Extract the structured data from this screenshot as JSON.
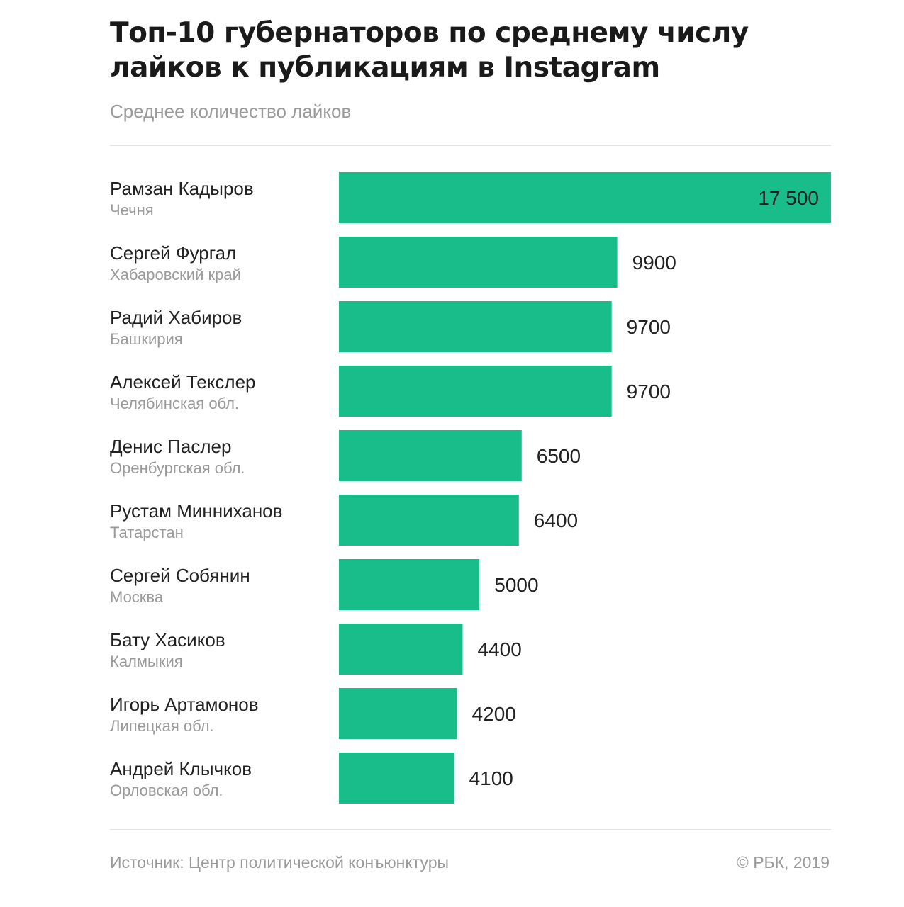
{
  "header": {
    "title": "Топ-10 губернаторов по среднему числу лайков к публикациям в Instagram",
    "subtitle": "Среднее количество лайков"
  },
  "footer": {
    "source": "Источник: Центр политической конъюнктуры",
    "copyright": "© РБК, 2019"
  },
  "colors": {
    "bar": "#18bd8a",
    "name_text": "#222222",
    "region_text": "#9a9a9a",
    "value_text": "#222222"
  },
  "chart_data": {
    "type": "bar",
    "orientation": "horizontal",
    "title": "Топ-10 губернаторов по среднему числу лайков к публикациям в Instagram",
    "subtitle": "Среднее количество лайков",
    "categories": [
      {
        "name": "Рамзан Кадыров",
        "region": "Чечня"
      },
      {
        "name": "Сергей Фургал",
        "region": "Хабаровский край"
      },
      {
        "name": "Радий Хабиров",
        "region": "Башкирия"
      },
      {
        "name": "Алексей Текслер",
        "region": "Челябинская обл."
      },
      {
        "name": "Денис Паслер",
        "region": "Оренбургская обл."
      },
      {
        "name": "Рустам Минниханов",
        "region": "Татарстан"
      },
      {
        "name": "Сергей Собянин",
        "region": "Москва"
      },
      {
        "name": "Бату Хасиков",
        "region": "Калмыкия"
      },
      {
        "name": "Игорь Артамонов",
        "region": "Липецкая обл."
      },
      {
        "name": "Андрей Клычков",
        "region": "Орловская обл."
      }
    ],
    "values": [
      17500,
      9900,
      9700,
      9700,
      6500,
      6400,
      5000,
      4400,
      4200,
      4100
    ],
    "value_labels": [
      "17 500",
      "9900",
      "9700",
      "9700",
      "6500",
      "6400",
      "5000",
      "4400",
      "4200",
      "4100"
    ],
    "xlim": [
      0,
      17500
    ],
    "grid": false,
    "legend": "none"
  }
}
